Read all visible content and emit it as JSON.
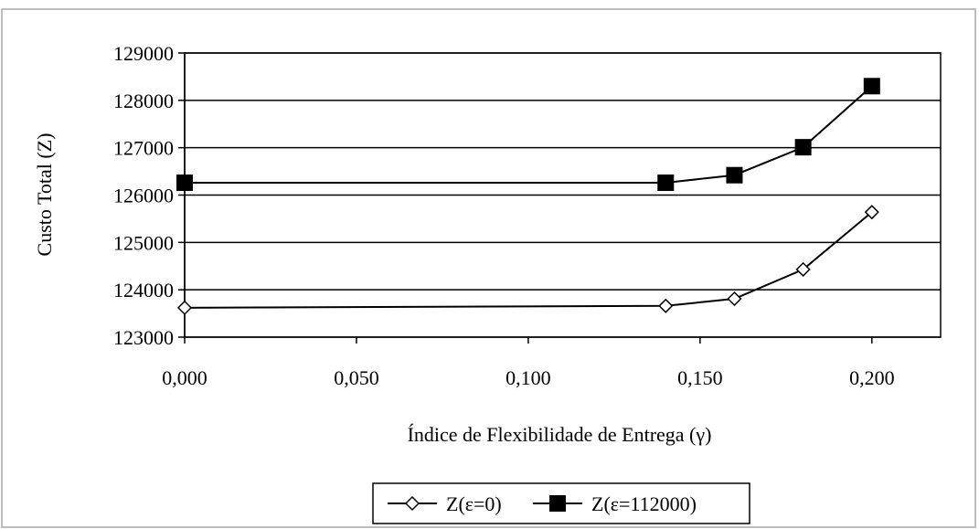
{
  "chart_data": {
    "type": "line",
    "xlabel": "Índice de Flexibilidade de Entrega (γ)",
    "ylabel": "Custo Total (Z)",
    "xlim": [
      0,
      0.22
    ],
    "ylim": [
      123000,
      129000
    ],
    "x_ticks": [
      0,
      0.05,
      0.1,
      0.15,
      0.2
    ],
    "x_tick_labels": [
      "0,000",
      "0,050",
      "0,100",
      "0,150",
      "0,200"
    ],
    "y_ticks": [
      123000,
      124000,
      125000,
      126000,
      127000,
      128000,
      129000
    ],
    "y_tick_labels": [
      "123000",
      "124000",
      "125000",
      "126000",
      "127000",
      "128000",
      "129000"
    ],
    "grid": "horizontal",
    "legend_position": "bottom",
    "series": [
      {
        "name": "Z(ε=0)",
        "marker": "diamond-open",
        "color": "#000000",
        "x": [
          0.0,
          0.14,
          0.16,
          0.18,
          0.2
        ],
        "y": [
          123620,
          123660,
          123810,
          124430,
          125640
        ]
      },
      {
        "name": "Z(ε=112000)",
        "marker": "square-filled",
        "color": "#000000",
        "x": [
          0.0,
          0.14,
          0.16,
          0.18,
          0.2
        ],
        "y": [
          126260,
          126260,
          126420,
          127010,
          128300
        ]
      }
    ]
  }
}
